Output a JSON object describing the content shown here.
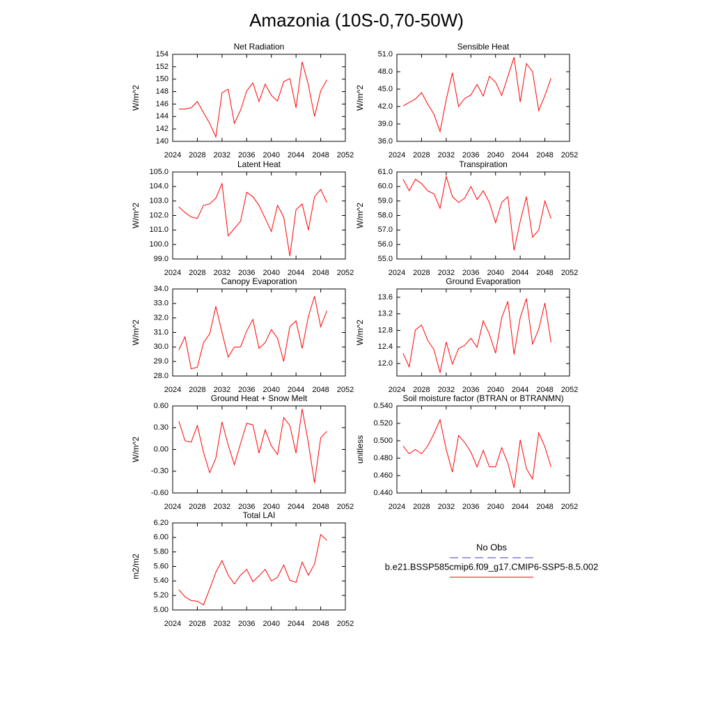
{
  "title": "Amazonia (10S-0,70-50W)",
  "legend": [
    {
      "name": "No Obs",
      "color": "#3c3cb4",
      "dash": "dashed"
    },
    {
      "name": "b.e21.BSSP585cmip6.f09_g17.CMIP6-SSP5-8.5.002",
      "color": "#ff0000",
      "dash": "solid"
    }
  ],
  "chart_data": [
    {
      "type": "line",
      "title": "Net Radiation",
      "y_label": "W/m^2",
      "x": [
        2025,
        2026,
        2027,
        2028,
        2029,
        2030,
        2031,
        2032,
        2033,
        2034,
        2035,
        2036,
        2037,
        2038,
        2039,
        2040,
        2041,
        2042,
        2043,
        2044,
        2045,
        2046,
        2047,
        2048,
        2049
      ],
      "series": [
        {
          "color": "#ff0000",
          "values": [
            145.2,
            145.2,
            145.4,
            146.4,
            144.6,
            142.9,
            140.7,
            147.8,
            148.4,
            142.9,
            145.0,
            148.1,
            149.4,
            146.4,
            149.2,
            147.4,
            146.5,
            149.6,
            150.1,
            145.4,
            152.8,
            149.1,
            144.0,
            148.1,
            149.9
          ]
        }
      ],
      "xlim": [
        2024,
        2052
      ],
      "xticks": [
        2024,
        2028,
        2032,
        2036,
        2040,
        2044,
        2048,
        2052
      ],
      "ylim": [
        140,
        154
      ],
      "yticks": [
        140,
        142,
        144,
        146,
        148,
        150,
        152,
        154
      ]
    },
    {
      "type": "line",
      "title": "Sensible Heat",
      "y_label": "W/m^2",
      "x": [
        2025,
        2026,
        2027,
        2028,
        2029,
        2030,
        2031,
        2032,
        2033,
        2034,
        2035,
        2036,
        2037,
        2038,
        2039,
        2040,
        2041,
        2042,
        2043,
        2044,
        2045,
        2046,
        2047,
        2048,
        2049
      ],
      "series": [
        {
          "color": "#ff0000",
          "values": [
            42.1,
            42.7,
            43.3,
            44.4,
            42.4,
            40.7,
            37.7,
            43.2,
            47.8,
            42.0,
            43.4,
            44.0,
            45.8,
            43.8,
            47.2,
            46.2,
            43.9,
            47.2,
            50.5,
            42.8,
            49.4,
            48.0,
            41.3,
            43.9,
            46.9
          ]
        }
      ],
      "xlim": [
        2024,
        2052
      ],
      "xticks": [
        2024,
        2028,
        2032,
        2036,
        2040,
        2044,
        2048,
        2052
      ],
      "ylim": [
        36,
        51
      ],
      "yticks": [
        {
          "value": 36,
          "label": "36.0"
        },
        {
          "value": 39,
          "label": "39.0"
        },
        {
          "value": 42,
          "label": "42.0"
        },
        {
          "value": 45,
          "label": "45.0"
        },
        {
          "value": 48,
          "label": "48.0"
        },
        {
          "value": 51,
          "label": "51.0"
        }
      ]
    },
    {
      "type": "line",
      "title": "Latent Heat",
      "y_label": "W/m^2",
      "x": [
        2025,
        2026,
        2027,
        2028,
        2029,
        2030,
        2031,
        2032,
        2033,
        2034,
        2035,
        2036,
        2037,
        2038,
        2039,
        2040,
        2041,
        2042,
        2043,
        2044,
        2045,
        2046,
        2047,
        2048,
        2049
      ],
      "series": [
        {
          "color": "#ff0000",
          "values": [
            102.6,
            102.2,
            101.9,
            101.8,
            102.7,
            102.8,
            103.2,
            104.2,
            100.6,
            101.1,
            101.6,
            103.6,
            103.3,
            102.7,
            101.8,
            100.9,
            102.7,
            101.9,
            99.2,
            102.4,
            102.8,
            101.0,
            103.3,
            103.8,
            102.9
          ]
        }
      ],
      "xlim": [
        2024,
        2052
      ],
      "xticks": [
        2024,
        2028,
        2032,
        2036,
        2040,
        2044,
        2048,
        2052
      ],
      "ylim": [
        99,
        105
      ],
      "yticks": [
        {
          "value": 99,
          "label": "99.0"
        },
        {
          "value": 100,
          "label": "100.0"
        },
        {
          "value": 101,
          "label": "101.0"
        },
        {
          "value": 102,
          "label": "102.0"
        },
        {
          "value": 103,
          "label": "103.0"
        },
        {
          "value": 104,
          "label": "104.0"
        },
        {
          "value": 105,
          "label": "105.0"
        }
      ]
    },
    {
      "type": "line",
      "title": "Transpiration",
      "y_label": "W/m^2",
      "x": [
        2025,
        2026,
        2027,
        2028,
        2029,
        2030,
        2031,
        2032,
        2033,
        2034,
        2035,
        2036,
        2037,
        2038,
        2039,
        2040,
        2041,
        2042,
        2043,
        2044,
        2045,
        2046,
        2047,
        2048,
        2049
      ],
      "series": [
        {
          "color": "#ff0000",
          "values": [
            60.5,
            59.7,
            60.5,
            60.2,
            59.7,
            59.5,
            58.5,
            60.7,
            59.3,
            58.9,
            59.2,
            60.0,
            59.1,
            59.7,
            58.9,
            57.5,
            58.9,
            59.3,
            55.6,
            57.6,
            59.3,
            56.5,
            57.0,
            59.0,
            57.8
          ]
        }
      ],
      "xlim": [
        2024,
        2052
      ],
      "xticks": [
        2024,
        2028,
        2032,
        2036,
        2040,
        2044,
        2048,
        2052
      ],
      "ylim": [
        55,
        61
      ],
      "yticks": [
        {
          "value": 55,
          "label": "55.0"
        },
        {
          "value": 56,
          "label": "56.0"
        },
        {
          "value": 57,
          "label": "57.0"
        },
        {
          "value": 58,
          "label": "58.0"
        },
        {
          "value": 59,
          "label": "59.0"
        },
        {
          "value": 60,
          "label": "60.0"
        },
        {
          "value": 61,
          "label": "61.0"
        }
      ]
    },
    {
      "type": "line",
      "title": "Canopy Evaporation",
      "y_label": "W/m^2",
      "x": [
        2025,
        2026,
        2027,
        2028,
        2029,
        2030,
        2031,
        2032,
        2033,
        2034,
        2035,
        2036,
        2037,
        2038,
        2039,
        2040,
        2041,
        2042,
        2043,
        2044,
        2045,
        2046,
        2047,
        2048,
        2049
      ],
      "series": [
        {
          "color": "#ff0000",
          "values": [
            29.8,
            30.7,
            28.5,
            28.6,
            30.3,
            30.9,
            32.8,
            31.0,
            29.3,
            30.0,
            30.0,
            31.1,
            31.9,
            29.9,
            30.3,
            31.2,
            30.6,
            29.0,
            31.4,
            31.8,
            29.9,
            32.1,
            33.5,
            31.4,
            32.5
          ]
        }
      ],
      "xlim": [
        2024,
        2052
      ],
      "xticks": [
        2024,
        2028,
        2032,
        2036,
        2040,
        2044,
        2048,
        2052
      ],
      "ylim": [
        28,
        34
      ],
      "yticks": [
        {
          "value": 28,
          "label": "28.0"
        },
        {
          "value": 29,
          "label": "29.0"
        },
        {
          "value": 30,
          "label": "30.0"
        },
        {
          "value": 31,
          "label": "31.0"
        },
        {
          "value": 32,
          "label": "32.0"
        },
        {
          "value": 33,
          "label": "33.0"
        },
        {
          "value": 34,
          "label": "34.0"
        }
      ]
    },
    {
      "type": "line",
      "title": "Ground Evaporation",
      "y_label": "W/m^2",
      "x": [
        2025,
        2026,
        2027,
        2028,
        2029,
        2030,
        2031,
        2032,
        2033,
        2034,
        2035,
        2036,
        2037,
        2038,
        2039,
        2040,
        2041,
        2042,
        2043,
        2044,
        2045,
        2046,
        2047,
        2048,
        2049
      ],
      "series": [
        {
          "color": "#ff0000",
          "values": [
            12.25,
            11.92,
            12.81,
            12.93,
            12.56,
            12.34,
            11.78,
            12.52,
            11.99,
            12.36,
            12.44,
            12.61,
            12.39,
            13.03,
            12.71,
            12.25,
            13.11,
            13.5,
            12.22,
            13.11,
            13.57,
            12.47,
            12.83,
            13.46,
            12.51
          ]
        }
      ],
      "xlim": [
        2024,
        2052
      ],
      "xticks": [
        2024,
        2028,
        2032,
        2036,
        2040,
        2044,
        2048,
        2052
      ],
      "ylim": [
        11.7,
        13.8
      ],
      "yticks": [
        {
          "value": 12,
          "label": "12.0"
        },
        12.4,
        12.8,
        13.2,
        13.6
      ]
    },
    {
      "type": "line",
      "title": "Ground Heat + Snow Melt",
      "y_label": "W/m^2",
      "x": [
        2025,
        2026,
        2027,
        2028,
        2029,
        2030,
        2031,
        2032,
        2033,
        2034,
        2035,
        2036,
        2037,
        2038,
        2039,
        2040,
        2041,
        2042,
        2043,
        2044,
        2045,
        2046,
        2047,
        2048,
        2049
      ],
      "series": [
        {
          "color": "#ff0000",
          "values": [
            0.39,
            0.12,
            0.1,
            0.33,
            -0.04,
            -0.32,
            -0.12,
            0.38,
            0.06,
            -0.21,
            0.08,
            0.36,
            0.34,
            -0.05,
            0.27,
            0.05,
            -0.07,
            0.44,
            0.33,
            -0.05,
            0.56,
            0.09,
            -0.46,
            0.16,
            0.25
          ]
        }
      ],
      "xlim": [
        2024,
        2052
      ],
      "xticks": [
        2024,
        2028,
        2032,
        2036,
        2040,
        2044,
        2048,
        2052
      ],
      "ylim": [
        -0.6,
        0.6
      ],
      "yticks": [
        {
          "value": -0.6,
          "label": "-0.60"
        },
        {
          "value": -0.3,
          "label": "-0.30"
        },
        {
          "value": 0,
          "label": "0.00"
        },
        {
          "value": 0.3,
          "label": "0.30"
        },
        {
          "value": 0.6,
          "label": "0.60"
        }
      ]
    },
    {
      "type": "line",
      "title": "Soil moisture factor (BTRAN or BTRANMN)",
      "y_label": "unitless",
      "x": [
        2025,
        2026,
        2027,
        2028,
        2029,
        2030,
        2031,
        2032,
        2033,
        2034,
        2035,
        2036,
        2037,
        2038,
        2039,
        2040,
        2041,
        2042,
        2043,
        2044,
        2045,
        2046,
        2047,
        2048,
        2049
      ],
      "series": [
        {
          "color": "#ff0000",
          "values": [
            0.494,
            0.485,
            0.49,
            0.485,
            0.494,
            0.508,
            0.524,
            0.49,
            0.464,
            0.506,
            0.498,
            0.487,
            0.47,
            0.489,
            0.47,
            0.47,
            0.492,
            0.474,
            0.446,
            0.501,
            0.468,
            0.456,
            0.509,
            0.493,
            0.47
          ]
        }
      ],
      "xlim": [
        2024,
        2052
      ],
      "xticks": [
        2024,
        2028,
        2032,
        2036,
        2040,
        2044,
        2048,
        2052
      ],
      "ylim": [
        0.44,
        0.54
      ],
      "yticks": [
        {
          "value": 0.44,
          "label": "0.440"
        },
        {
          "value": 0.46,
          "label": "0.460"
        },
        {
          "value": 0.48,
          "label": "0.480"
        },
        {
          "value": 0.5,
          "label": "0.500"
        },
        {
          "value": 0.52,
          "label": "0.520"
        },
        {
          "value": 0.54,
          "label": "0.540"
        }
      ]
    },
    {
      "type": "line",
      "title": "Total LAI",
      "y_label": "m2/m2",
      "x": [
        2025,
        2026,
        2027,
        2028,
        2029,
        2030,
        2031,
        2032,
        2033,
        2034,
        2035,
        2036,
        2037,
        2038,
        2039,
        2040,
        2041,
        2042,
        2043,
        2044,
        2045,
        2046,
        2047,
        2048,
        2049
      ],
      "series": [
        {
          "color": "#ff0000",
          "values": [
            5.28,
            5.18,
            5.13,
            5.12,
            5.07,
            5.29,
            5.52,
            5.68,
            5.48,
            5.36,
            5.48,
            5.56,
            5.39,
            5.47,
            5.56,
            5.4,
            5.45,
            5.62,
            5.41,
            5.38,
            5.66,
            5.48,
            5.63,
            6.04,
            5.96
          ]
        }
      ],
      "xlim": [
        2024,
        2052
      ],
      "xticks": [
        2024,
        2028,
        2032,
        2036,
        2040,
        2044,
        2048,
        2052
      ],
      "ylim": [
        5.0,
        6.2
      ],
      "yticks": [
        {
          "value": 5.0,
          "label": "5.00"
        },
        {
          "value": 5.2,
          "label": "5.20"
        },
        {
          "value": 5.4,
          "label": "5.40"
        },
        {
          "value": 5.6,
          "label": "5.60"
        },
        {
          "value": 5.8,
          "label": "5.80"
        },
        {
          "value": 6.0,
          "label": "6.00"
        },
        {
          "value": 6.2,
          "label": "6.20"
        }
      ]
    }
  ]
}
